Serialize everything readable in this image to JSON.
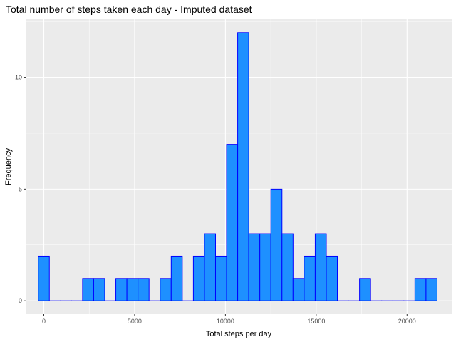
{
  "chart_data": {
    "type": "bar",
    "title": "Total number of steps taken each day - Imputed dataset",
    "xlabel": "Total steps per day",
    "ylabel": "Frequency",
    "bin_width": 610,
    "bin_centers": [
      0,
      610,
      1220,
      1830,
      2440,
      3050,
      3660,
      4270,
      4880,
      5490,
      6100,
      6710,
      7320,
      7930,
      8540,
      9150,
      9760,
      10370,
      10980,
      11590,
      12200,
      12810,
      13420,
      14030,
      14640,
      15250,
      15860,
      16470,
      17080,
      17690,
      18300,
      18910,
      19520,
      20130,
      20740,
      21350
    ],
    "values": [
      2,
      0,
      0,
      0,
      1,
      1,
      0,
      1,
      1,
      1,
      0,
      1,
      2,
      0,
      2,
      3,
      2,
      7,
      12,
      3,
      3,
      5,
      3,
      1,
      2,
      3,
      2,
      0,
      0,
      1,
      0,
      0,
      0,
      0,
      1,
      1
    ],
    "xlim": [
      -1000,
      22500
    ],
    "ylim": [
      -0.6,
      12.6
    ],
    "x_ticks": [
      0,
      5000,
      10000,
      15000,
      20000
    ],
    "y_ticks": [
      0,
      5,
      10
    ],
    "x_tick_labels": [
      "0",
      "5000",
      "10000",
      "15000",
      "20000"
    ],
    "y_tick_labels": [
      "0",
      "5",
      "10"
    ],
    "grid": true,
    "colors": {
      "panel_background": "#ebebeb",
      "grid": "#ffffff",
      "bar_fill": "#1e90ff",
      "bar_outline": "#0000ff"
    }
  }
}
